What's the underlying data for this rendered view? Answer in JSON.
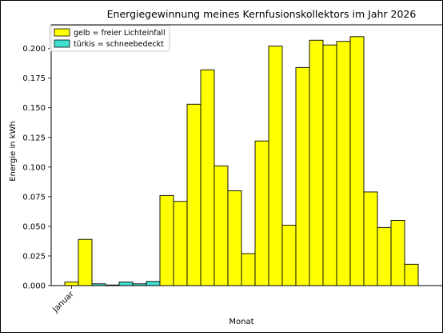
{
  "chart_data": {
    "type": "bar",
    "title": "Energiegewinnung meines Kernfusionskollektors im Jahr 2026",
    "xlabel": "Monat",
    "ylabel": "Energie in kWh",
    "ylim": [
      0,
      0.22
    ],
    "yticks": [
      "0.000",
      "0.025",
      "0.050",
      "0.075",
      "0.100",
      "0.125",
      "0.150",
      "0.175",
      "0.200"
    ],
    "ytick_values": [
      0,
      0.025,
      0.05,
      0.075,
      0.1,
      0.125,
      0.15,
      0.175,
      0.2
    ],
    "xticks": [
      "Januar"
    ],
    "grid": false,
    "legend_position": "top-left",
    "legend": [
      {
        "label": "gelb = freier Lichteinfall",
        "color": "#ffff00"
      },
      {
        "label": "türkis = schneebedeckt",
        "color": "#40e0d0"
      }
    ],
    "values": [
      0.003,
      0.039,
      0.0015,
      0.0005,
      0.003,
      0.0015,
      0.0035,
      0.076,
      0.071,
      0.153,
      0.182,
      0.101,
      0.08,
      0.027,
      0.122,
      0.202,
      0.051,
      0.184,
      0.207,
      0.203,
      0.206,
      0.21,
      0.079,
      0.049,
      0.055,
      0.018
    ],
    "colors": [
      "#ffff00",
      "#ffff00",
      "#40e0d0",
      "#40e0d0",
      "#40e0d0",
      "#40e0d0",
      "#40e0d0",
      "#ffff00",
      "#ffff00",
      "#ffff00",
      "#ffff00",
      "#ffff00",
      "#ffff00",
      "#ffff00",
      "#ffff00",
      "#ffff00",
      "#ffff00",
      "#ffff00",
      "#ffff00",
      "#ffff00",
      "#ffff00",
      "#ffff00",
      "#ffff00",
      "#ffff00",
      "#ffff00",
      "#ffff00"
    ]
  }
}
